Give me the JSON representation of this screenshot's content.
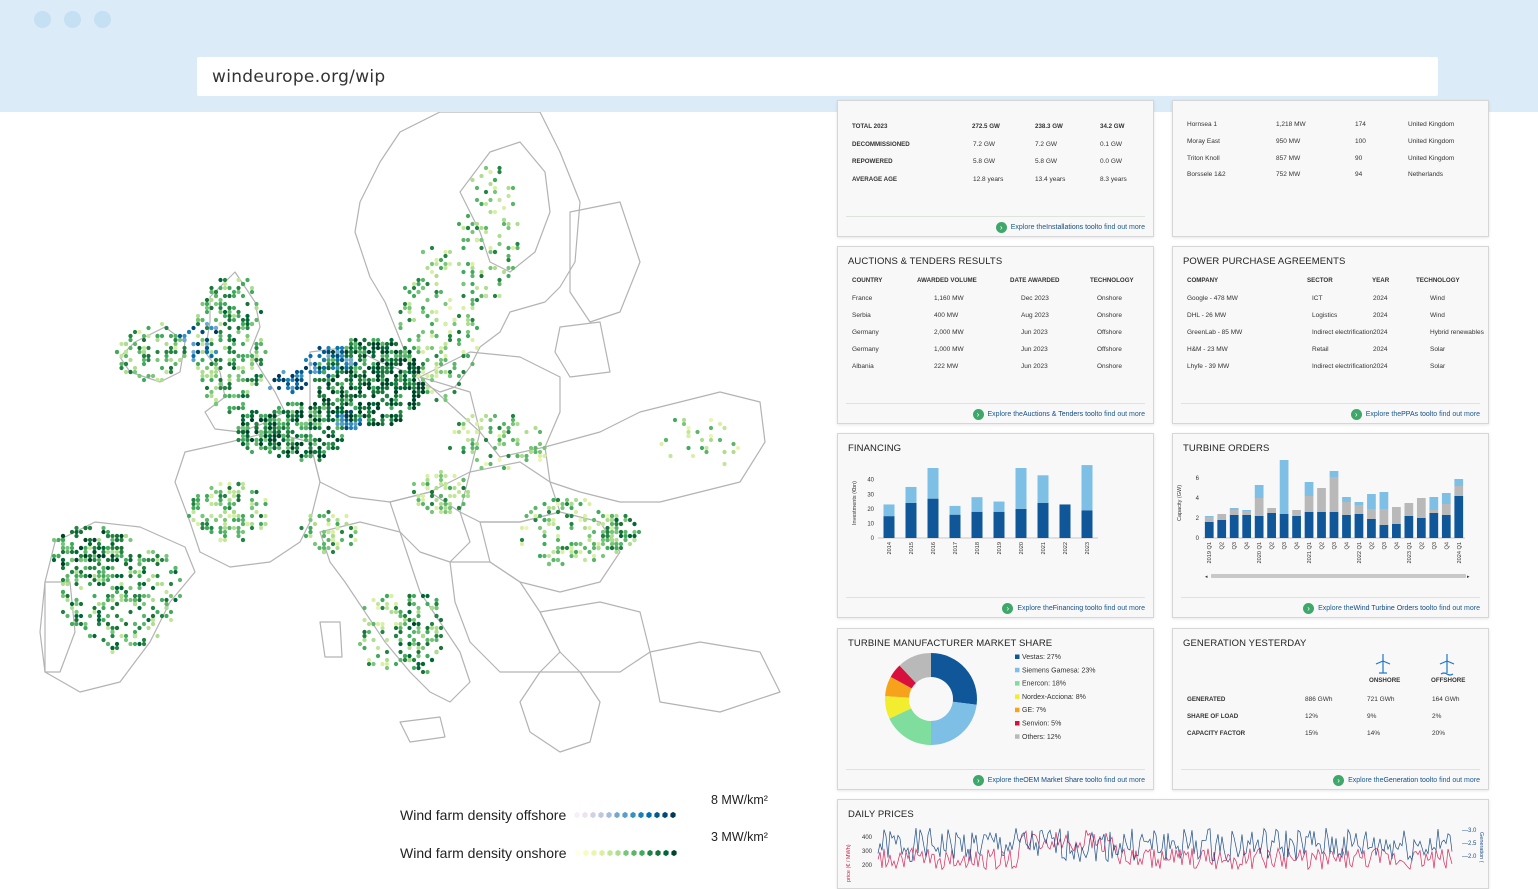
{
  "browser": {
    "url": "windeurope.org/wip"
  },
  "legend": {
    "offshore_label": "Wind farm density offshore",
    "offshore_max": "8 MW/km²",
    "onshore_label": "Wind farm density onshore",
    "onshore_max": "3 MW/km²",
    "offshore_colors": [
      "#f6eff7",
      "#ece2f0",
      "#d0d1e6",
      "#bdc9e1",
      "#a6bddb",
      "#74a9cf",
      "#5a9fcc",
      "#3690c0",
      "#1c7fb6",
      "#0570b0",
      "#045a8d",
      "#024a75",
      "#023858"
    ],
    "onshore_colors": [
      "#ffffe5",
      "#f7fcb9",
      "#e8f6b0",
      "#d9f0a3",
      "#c2e699",
      "#addd8e",
      "#78c679",
      "#5cb56a",
      "#41ab5d",
      "#238443",
      "#1b7339",
      "#006837",
      "#004529"
    ]
  },
  "installations": {
    "rows": [
      {
        "label": "TOTAL 2023",
        "a": "272.5 GW",
        "b": "238.3 GW",
        "c": "34.2 GW",
        "bold": true
      },
      {
        "label": "DECOMMISSIONED",
        "a": "7.2 GW",
        "b": "7.2 GW",
        "c": "0.1 GW",
        "bold": false
      },
      {
        "label": "REPOWERED",
        "a": "5.8 GW",
        "b": "5.8 GW",
        "c": "0.0 GW",
        "bold": false
      },
      {
        "label": "AVERAGE AGE",
        "a": "12.8 years",
        "b": "13.4 years",
        "c": "8.3 years",
        "bold": false
      }
    ],
    "footer_pre": "Explore the ",
    "footer_link": "Installations tool",
    "footer_post": " to find out more"
  },
  "offshore_farms": {
    "rows": [
      {
        "name": "Hornsea 1",
        "cap": "1,218  MW",
        "n": "174",
        "country": "United Kingdom"
      },
      {
        "name": "Moray East",
        "cap": "950  MW",
        "n": "100",
        "country": "United Kingdom"
      },
      {
        "name": "Triton Knoll",
        "cap": "857  MW",
        "n": "90",
        "country": "United Kingdom"
      },
      {
        "name": "Borssele 1&2",
        "cap": "752  MW",
        "n": "94",
        "country": "Netherlands"
      }
    ]
  },
  "auctions": {
    "title": "AUCTIONS & TENDERS RESULTS",
    "headers": [
      "COUNTRY",
      "AWARDED VOLUME",
      "DATE AWARDED",
      "TECHNOLOGY"
    ],
    "rows": [
      [
        "France",
        "1,160  MW",
        "Dec 2023",
        "Onshore"
      ],
      [
        "Serbia",
        "400  MW",
        "Aug 2023",
        "Onshore"
      ],
      [
        "Germany",
        "2,000  MW",
        "Jun 2023",
        "Offshore"
      ],
      [
        "Germany",
        "1,000  MW",
        "Jun 2023",
        "Offshore"
      ],
      [
        "Albania",
        "222  MW",
        "Jun 2023",
        "Onshore"
      ]
    ],
    "footer_pre": "Explore the ",
    "footer_link": "Auctions & Tenders tool",
    "footer_post": " to find out more"
  },
  "ppa": {
    "title": "POWER PURCHASE AGREEMENTS",
    "headers": [
      "COMPANY",
      "SECTOR",
      "YEAR",
      "TECHNOLOGY"
    ],
    "rows": [
      [
        "Google - 478  MW",
        "ICT",
        "2024",
        "Wind"
      ],
      [
        "DHL - 26  MW",
        "Logistics",
        "2024",
        "Wind"
      ],
      [
        "GreenLab - 85  MW",
        "Indirect electrification",
        "2024",
        "Hybrid renewables"
      ],
      [
        "H&M - 23  MW",
        "Retail",
        "2024",
        "Solar"
      ],
      [
        "Lhyfe - 39  MW",
        "Indirect electrification",
        "2024",
        "Solar"
      ]
    ],
    "footer_pre": "Explore the ",
    "footer_link": "PPAs tool",
    "footer_post": " to find out more"
  },
  "financing": {
    "title": "FINANCING",
    "footer_pre": "Explore the ",
    "footer_link": "Financing tool",
    "footer_post": " to find out more"
  },
  "turbine_orders": {
    "title": "TURBINE ORDERS",
    "footer_pre": "Explore the ",
    "footer_link": "Wind Turbine Orders tool",
    "footer_post": " to find out more"
  },
  "oem": {
    "title": "TURBINE MANUFACTURER MARKET SHARE",
    "footer_pre": "Explore the ",
    "footer_link": "OEM Market Share tool",
    "footer_post": " to find out more"
  },
  "generation": {
    "title": "GENERATION YESTERDAY",
    "col_onshore": "ONSHORE",
    "col_offshore": "OFFSHORE",
    "rows": [
      {
        "label": "GENERATED",
        "total": "886 GWh",
        "on": "721 GWh",
        "off": "164 GWh"
      },
      {
        "label": "SHARE OF LOAD",
        "total": "12%",
        "on": "9%",
        "off": "2%"
      },
      {
        "label": "CAPACITY FACTOR",
        "total": "15%",
        "on": "14%",
        "off": "20%"
      }
    ],
    "footer_pre": "Explore the ",
    "footer_link": "Generation tool",
    "footer_post": " to find out more"
  },
  "daily_prices": {
    "title": "DAILY PRICES",
    "ylabel_left": "price (€ / MWh)",
    "ylabel_right": "Generation (",
    "left_ticks": [
      "400",
      "300",
      "200"
    ],
    "right_ticks": [
      "3.0",
      "2.5",
      "2.0"
    ]
  },
  "chart_data": [
    {
      "type": "bar",
      "title": "FINANCING",
      "ylabel": "Investments (€bn)",
      "categories": [
        "2014",
        "2015",
        "2016",
        "2017",
        "2018",
        "2019",
        "2020",
        "2021",
        "2022",
        "2023"
      ],
      "series": [
        {
          "values": [
            15,
            24,
            27,
            16,
            18,
            18,
            20,
            24,
            23,
            19
          ],
          "color": "#0f5799"
        },
        {
          "values": [
            8,
            11,
            21,
            6,
            10,
            7,
            28,
            19,
            0,
            31
          ],
          "color": "#7ebfe6"
        }
      ],
      "ylim": [
        0,
        48
      ],
      "yticks": [
        0,
        10,
        20,
        30,
        40
      ]
    },
    {
      "type": "bar",
      "title": "TURBINE ORDERS",
      "ylabel": "Capacity (GW)",
      "categories": [
        "2019 Q1",
        "Q2",
        "Q3",
        "Q4",
        "2020 Q1",
        "Q2",
        "Q3",
        "Q4",
        "2021 Q1",
        "Q2",
        "Q3",
        "Q4",
        "2022 Q1",
        "Q2",
        "Q3",
        "Q4",
        "2023 Q1",
        "Q2",
        "Q3",
        "Q4",
        "2024 Q1"
      ],
      "series": [
        {
          "values": [
            1.6,
            1.8,
            2.3,
            2.3,
            2.2,
            2.5,
            2.4,
            2.2,
            2.6,
            2.6,
            2.6,
            2.3,
            2.4,
            1.9,
            1.3,
            1.4,
            2.2,
            2.0,
            2.5,
            2.3,
            4.2
          ],
          "color": "#0f5799"
        },
        {
          "values": [
            0.5,
            0.6,
            0.5,
            0.4,
            1.8,
            0.5,
            0,
            0.6,
            1.6,
            2.4,
            3.5,
            1.3,
            0.9,
            1.0,
            1.6,
            1.7,
            1.3,
            2.0,
            0.3,
            1.1,
            1.0
          ],
          "color": "#b9b9b9"
        },
        {
          "values": [
            0.1,
            0,
            0.2,
            0.1,
            1.3,
            0,
            5.4,
            0,
            1.4,
            0,
            0.6,
            0.5,
            0.3,
            1.5,
            1.7,
            0,
            0,
            0,
            1.3,
            1.1,
            0.7
          ],
          "color": "#7ebfe6"
        }
      ],
      "ylim": [
        0,
        7
      ],
      "yticks": [
        0,
        2,
        4,
        6
      ]
    },
    {
      "type": "pie",
      "title": "TURBINE MANUFACTURER MARKET SHARE",
      "categories": [
        "Vestas: 27%",
        "Siemens Gamesa: 23%",
        "Enercon: 18%",
        "Nordex-Acciona: 8%",
        "GE: 7%",
        "Senvion: 5%",
        "Others: 12%"
      ],
      "values": [
        27,
        23,
        18,
        8,
        7,
        5,
        12
      ],
      "colors": [
        "#0f5799",
        "#7ebfe6",
        "#7fdd9e",
        "#f2ee2f",
        "#f7a21b",
        "#d8103e",
        "#b9b9b9"
      ]
    }
  ]
}
